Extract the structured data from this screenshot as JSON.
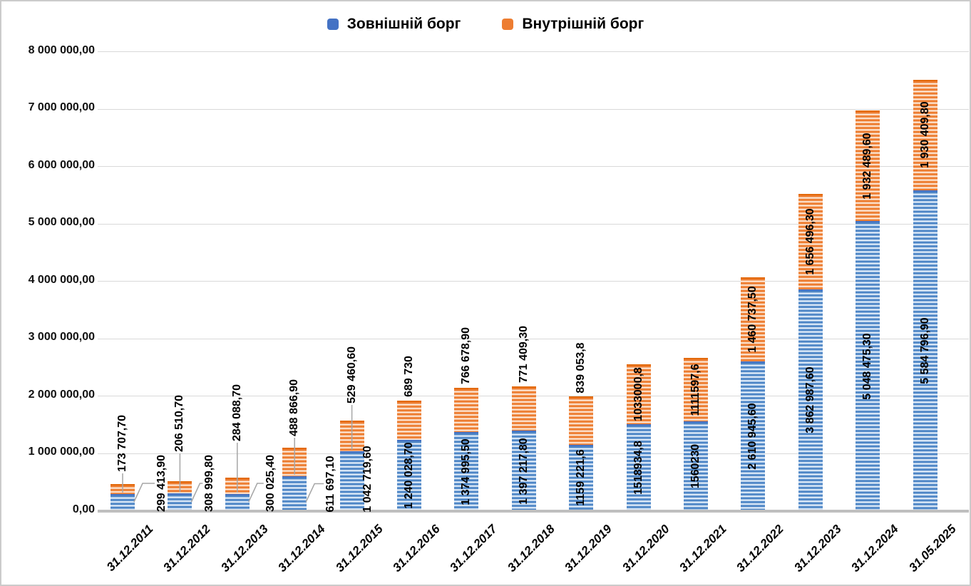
{
  "chart_data": {
    "type": "bar",
    "stacked": true,
    "title": "",
    "categories": [
      "31.12.2011",
      "31.12.2012",
      "31.12.2013",
      "31.12.2014",
      "31.12.2015",
      "31.12.2016",
      "31.12.2017",
      "31.12.2018",
      "31.12.2019",
      "31.12.2020",
      "31.12.2021",
      "31.12.2022",
      "31.12.2023",
      "31.12.2024",
      "31.05.2025"
    ],
    "series": [
      {
        "name": "Зовнішній борг",
        "color": "#4472C4",
        "values": [
          299413.9,
          308999.8,
          300025.4,
          611697.1,
          1042719.6,
          1240028.7,
          1374995.5,
          1397217.8,
          1159221.6,
          1518934.8,
          1560230,
          2610945.6,
          3862987.6,
          5048475.3,
          5584796.9
        ],
        "labels": [
          "299 413,90",
          "308 999,80",
          "300 025,40",
          "611 697,10",
          "1 042 719,60",
          "1 240 028,70",
          "1 374 995,50",
          "1 397 217,80",
          "1159 221,6",
          "1518934,8",
          "1560230",
          "2 610 945,60",
          "3 862 987,60",
          "5 048 475,30",
          "5 584 796,90"
        ]
      },
      {
        "name": "Внутрішній борг",
        "color": "#ED7D31",
        "values": [
          173707.7,
          206510.7,
          284088.7,
          488866.9,
          529460.6,
          689730,
          766678.9,
          771409.3,
          839053.8,
          1033000.8,
          1111597.6,
          1460737.5,
          1656496.3,
          1932489.6,
          1930409.8
        ],
        "labels": [
          "173 707,70",
          "206 510,70",
          "284 088,70",
          "488 866,90",
          "529 460,60",
          "689 730",
          "766 678,90",
          "771 409,30",
          "839 053,8",
          "1033000,8",
          "1111597,6",
          "1 460 737,50",
          "1 656 496,30",
          "1 932 489,60",
          "1 930 409,80"
        ]
      }
    ],
    "ylim": [
      0,
      8000000
    ],
    "ytick_step": 1000000,
    "ytick_labels": [
      "0,00",
      "1 000 000,00",
      "2 000 000,00",
      "3 000 000,00",
      "4 000 000,00",
      "5 000 000,00",
      "6 000 000,00",
      "7 000 000,00",
      "8 000 000,00"
    ],
    "legend_position": "top",
    "grid": true,
    "grid_color": "#D9D9D9",
    "axis_line_color": "#BFBFBF",
    "leader_line_color": "#A6A6A6"
  }
}
